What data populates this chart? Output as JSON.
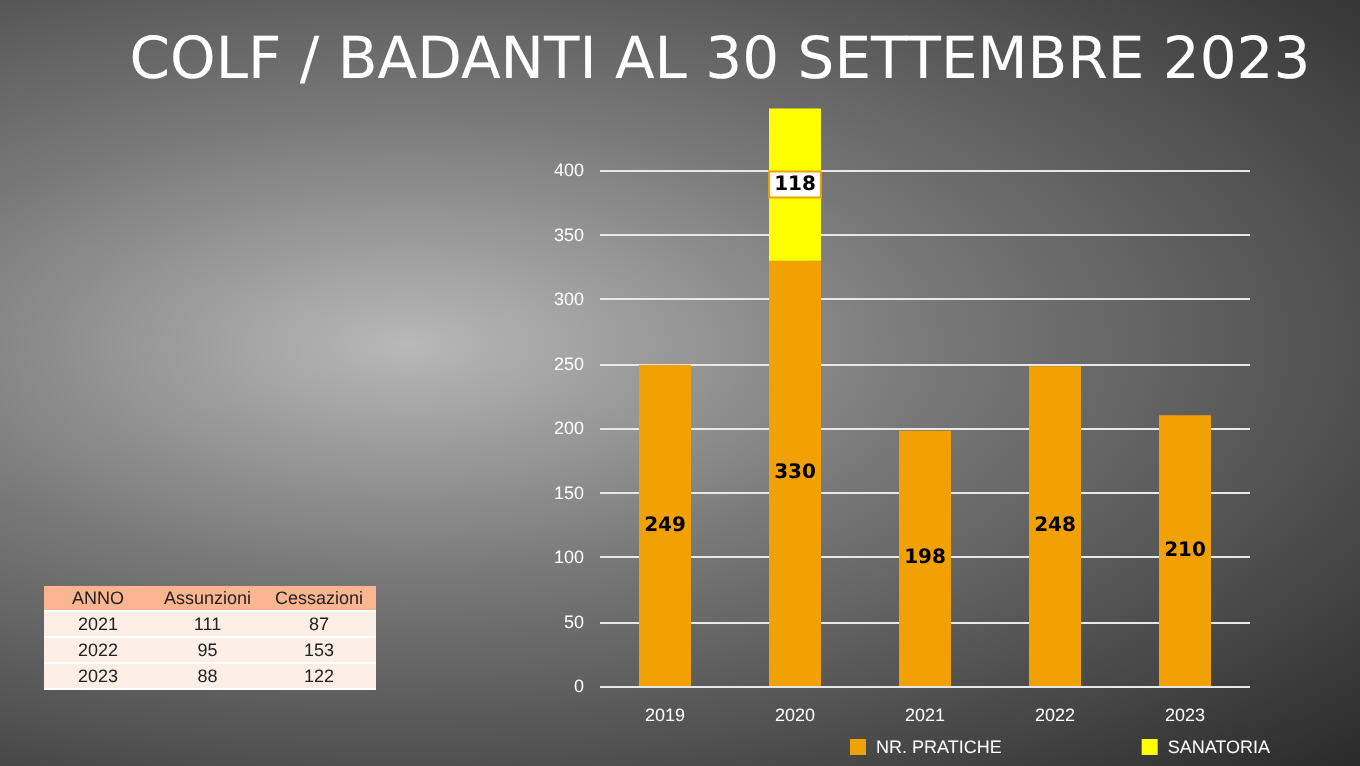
{
  "chart_data": {
    "type": "bar",
    "title": "COLF / BADANTI AL 30 SETTEMBRE 2023",
    "categories": [
      "2019",
      "2020",
      "2021",
      "2022",
      "2023"
    ],
    "stacked": true,
    "series": [
      {
        "name": "NR. PRATICHE",
        "color": "#f2a104",
        "values": [
          249,
          330,
          198,
          248,
          210
        ]
      },
      {
        "name": "SANATORIA",
        "color": "#ffff00",
        "values": [
          null,
          118,
          null,
          null,
          null
        ]
      }
    ],
    "ylim": [
      0,
      450
    ],
    "yticks": [
      0,
      50,
      100,
      150,
      200,
      250,
      300,
      350,
      400
    ],
    "grid": "y",
    "legend": "bottom",
    "data_labels": true,
    "annotations": [
      "ANNO",
      "Assunzioni",
      "Cessazioni",
      "2021",
      "111",
      "87",
      "2022",
      "95",
      "153",
      "2023",
      "88",
      "122"
    ]
  }
}
